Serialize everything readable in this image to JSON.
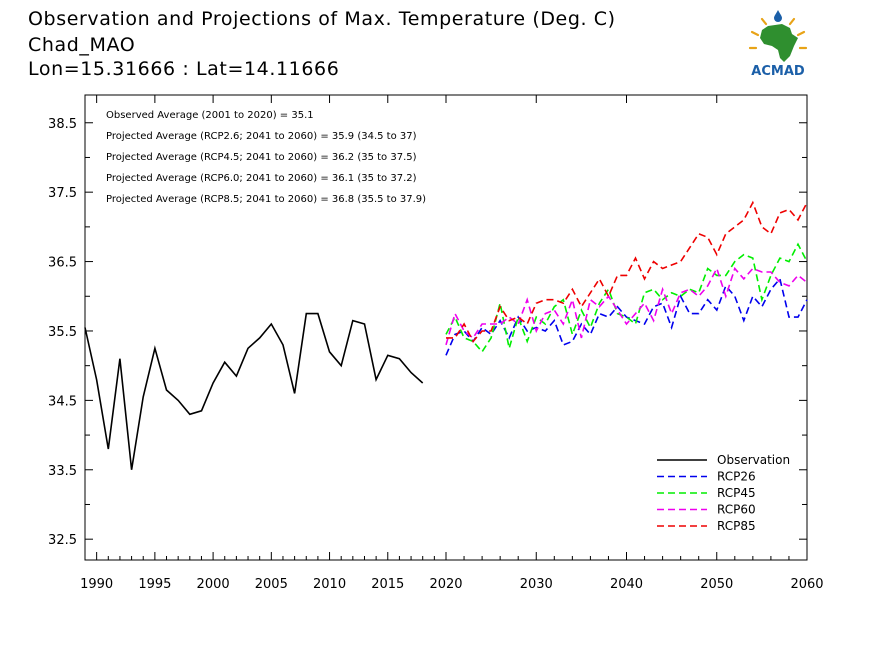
{
  "header": {
    "title_line1": "Observation and Projections of Max. Temperature (Deg. C)",
    "title_line2": "Chad_MAO",
    "title_line3": "Lon=15.31666 : Lat=14.11666"
  },
  "logo": {
    "text": "ACMAD",
    "icon": "africa-sun-logo-icon"
  },
  "chart_data": {
    "type": "line",
    "xlim": [
      1989,
      2060
    ],
    "ylim": [
      32.2,
      38.9
    ],
    "x_ticks": [
      1990,
      1995,
      2000,
      2005,
      2010,
      2015,
      2020,
      2030,
      2040,
      2050,
      2060
    ],
    "y_ticks": [
      32.5,
      33.5,
      34.5,
      35.5,
      36.5,
      37.5,
      38.5
    ],
    "y_tick_labels": [
      "32.5",
      "33.5",
      "34.5",
      "35.5",
      "36.5",
      "37.5",
      "38.5"
    ],
    "x_tick_labels": [
      "1990",
      "1995",
      "2000",
      "2005",
      "2010",
      "2015",
      "2020",
      "2030",
      "2040",
      "2050",
      "2060"
    ],
    "annotations": [
      "Observed Average (2001 to 2020) = 35.1",
      "Projected Average (RCP2.6; 2041 to 2060) = 35.9 (34.5 to 37)",
      "Projected Average (RCP4.5; 2041 to 2060) = 36.2 (35 to 37.5)",
      "Projected Average (RCP6.0; 2041 to 2060) = 36.1 (35 to 37.2)",
      "Projected Average (RCP8.5; 2041 to 2060) = 36.8 (35.5 to 37.9)"
    ],
    "legend_position": "bottom-right",
    "grid": false,
    "series": [
      {
        "name": "Observation",
        "color": "#000000",
        "dash": "solid",
        "x": [
          1989,
          1990,
          1991,
          1992,
          1993,
          1994,
          1995,
          1996,
          1997,
          1998,
          1999,
          2000,
          2001,
          2002,
          2003,
          2004,
          2005,
          2006,
          2007,
          2008,
          2009,
          2010,
          2011,
          2012,
          2013,
          2014,
          2015,
          2016,
          2017,
          2018,
          2019
        ],
        "values": [
          35.55,
          34.8,
          33.8,
          35.1,
          33.5,
          34.55,
          35.25,
          34.65,
          34.5,
          34.3,
          34.35,
          34.75,
          35.05,
          34.85,
          35.25,
          35.4,
          35.6,
          35.3,
          34.6,
          35.75,
          35.75,
          35.2,
          35.0,
          35.65,
          35.6,
          34.8,
          35.15,
          35.1,
          34.9,
          34.75,
          null
        ]
      },
      {
        "name": "RCP26",
        "color": "#0000ee",
        "dash": "dashed",
        "x": [
          2020,
          2021,
          2022,
          2023,
          2024,
          2025,
          2026,
          2027,
          2028,
          2029,
          2030,
          2031,
          2032,
          2033,
          2034,
          2035,
          2036,
          2037,
          2038,
          2039,
          2040,
          2041,
          2042,
          2043,
          2044,
          2045,
          2046,
          2047,
          2048,
          2049,
          2050,
          2051,
          2052,
          2053,
          2054,
          2055,
          2056,
          2057,
          2058,
          2059,
          2060
        ],
        "values": [
          35.15,
          35.45,
          35.5,
          35.35,
          35.55,
          35.45,
          35.65,
          35.4,
          35.7,
          35.5,
          35.55,
          35.5,
          35.65,
          35.3,
          35.35,
          35.6,
          35.45,
          35.75,
          35.7,
          35.85,
          35.7,
          35.65,
          35.6,
          35.85,
          35.9,
          35.55,
          36.0,
          35.75,
          35.75,
          35.95,
          35.8,
          36.15,
          36.0,
          35.65,
          36.0,
          35.85,
          36.1,
          36.25,
          35.7,
          35.7,
          35.95
        ]
      },
      {
        "name": "RCP45",
        "color": "#00ee00",
        "dash": "dashed",
        "x": [
          2020,
          2021,
          2022,
          2023,
          2024,
          2025,
          2026,
          2027,
          2028,
          2029,
          2030,
          2031,
          2032,
          2033,
          2034,
          2035,
          2036,
          2037,
          2038,
          2039,
          2040,
          2041,
          2042,
          2043,
          2044,
          2045,
          2046,
          2047,
          2048,
          2049,
          2050,
          2051,
          2052,
          2053,
          2054,
          2055,
          2056,
          2057,
          2058,
          2059,
          2060
        ],
        "values": [
          35.45,
          35.7,
          35.4,
          35.35,
          35.2,
          35.4,
          35.9,
          35.25,
          35.7,
          35.35,
          35.7,
          35.6,
          35.85,
          35.95,
          35.45,
          35.8,
          35.55,
          35.9,
          36.1,
          35.75,
          35.7,
          35.6,
          36.05,
          36.1,
          35.95,
          36.05,
          36.0,
          36.1,
          36.05,
          36.4,
          36.3,
          36.3,
          36.5,
          36.6,
          36.55,
          35.95,
          36.3,
          36.55,
          36.5,
          36.75,
          36.5
        ]
      },
      {
        "name": "RCP60",
        "color": "#ee00ee",
        "dash": "dashed",
        "x": [
          2020,
          2021,
          2022,
          2023,
          2024,
          2025,
          2026,
          2027,
          2028,
          2029,
          2030,
          2031,
          2032,
          2033,
          2034,
          2035,
          2036,
          2037,
          2038,
          2039,
          2040,
          2041,
          2042,
          2043,
          2044,
          2045,
          2046,
          2047,
          2048,
          2049,
          2050,
          2051,
          2052,
          2053,
          2054,
          2055,
          2056,
          2057,
          2058,
          2059,
          2060
        ],
        "values": [
          35.3,
          35.75,
          35.5,
          35.4,
          35.6,
          35.6,
          35.6,
          35.7,
          35.6,
          35.95,
          35.5,
          35.75,
          35.8,
          35.6,
          35.95,
          35.4,
          35.95,
          35.85,
          36.0,
          35.8,
          35.6,
          35.75,
          35.9,
          35.65,
          36.1,
          35.75,
          36.05,
          36.1,
          36.0,
          36.15,
          36.4,
          36.0,
          36.4,
          36.25,
          36.4,
          36.35,
          36.35,
          36.2,
          36.15,
          36.3,
          36.2
        ]
      },
      {
        "name": "RCP85",
        "color": "#ee0000",
        "dash": "dashed",
        "x": [
          2020,
          2021,
          2022,
          2023,
          2024,
          2025,
          2026,
          2027,
          2028,
          2029,
          2030,
          2031,
          2032,
          2033,
          2034,
          2035,
          2036,
          2037,
          2038,
          2039,
          2040,
          2041,
          2042,
          2043,
          2044,
          2045,
          2046,
          2047,
          2048,
          2049,
          2050,
          2051,
          2052,
          2053,
          2054,
          2055,
          2056,
          2057,
          2058,
          2059,
          2060
        ],
        "values": [
          35.4,
          35.4,
          35.6,
          35.35,
          35.5,
          35.5,
          35.85,
          35.65,
          35.7,
          35.6,
          35.9,
          35.95,
          35.95,
          35.9,
          36.1,
          35.85,
          36.05,
          36.25,
          36.0,
          36.3,
          36.3,
          36.55,
          36.25,
          36.5,
          36.4,
          36.45,
          36.5,
          36.7,
          36.9,
          36.85,
          36.6,
          36.9,
          37.0,
          37.1,
          37.35,
          37.0,
          36.9,
          37.2,
          37.25,
          37.1,
          37.35
        ]
      }
    ]
  }
}
